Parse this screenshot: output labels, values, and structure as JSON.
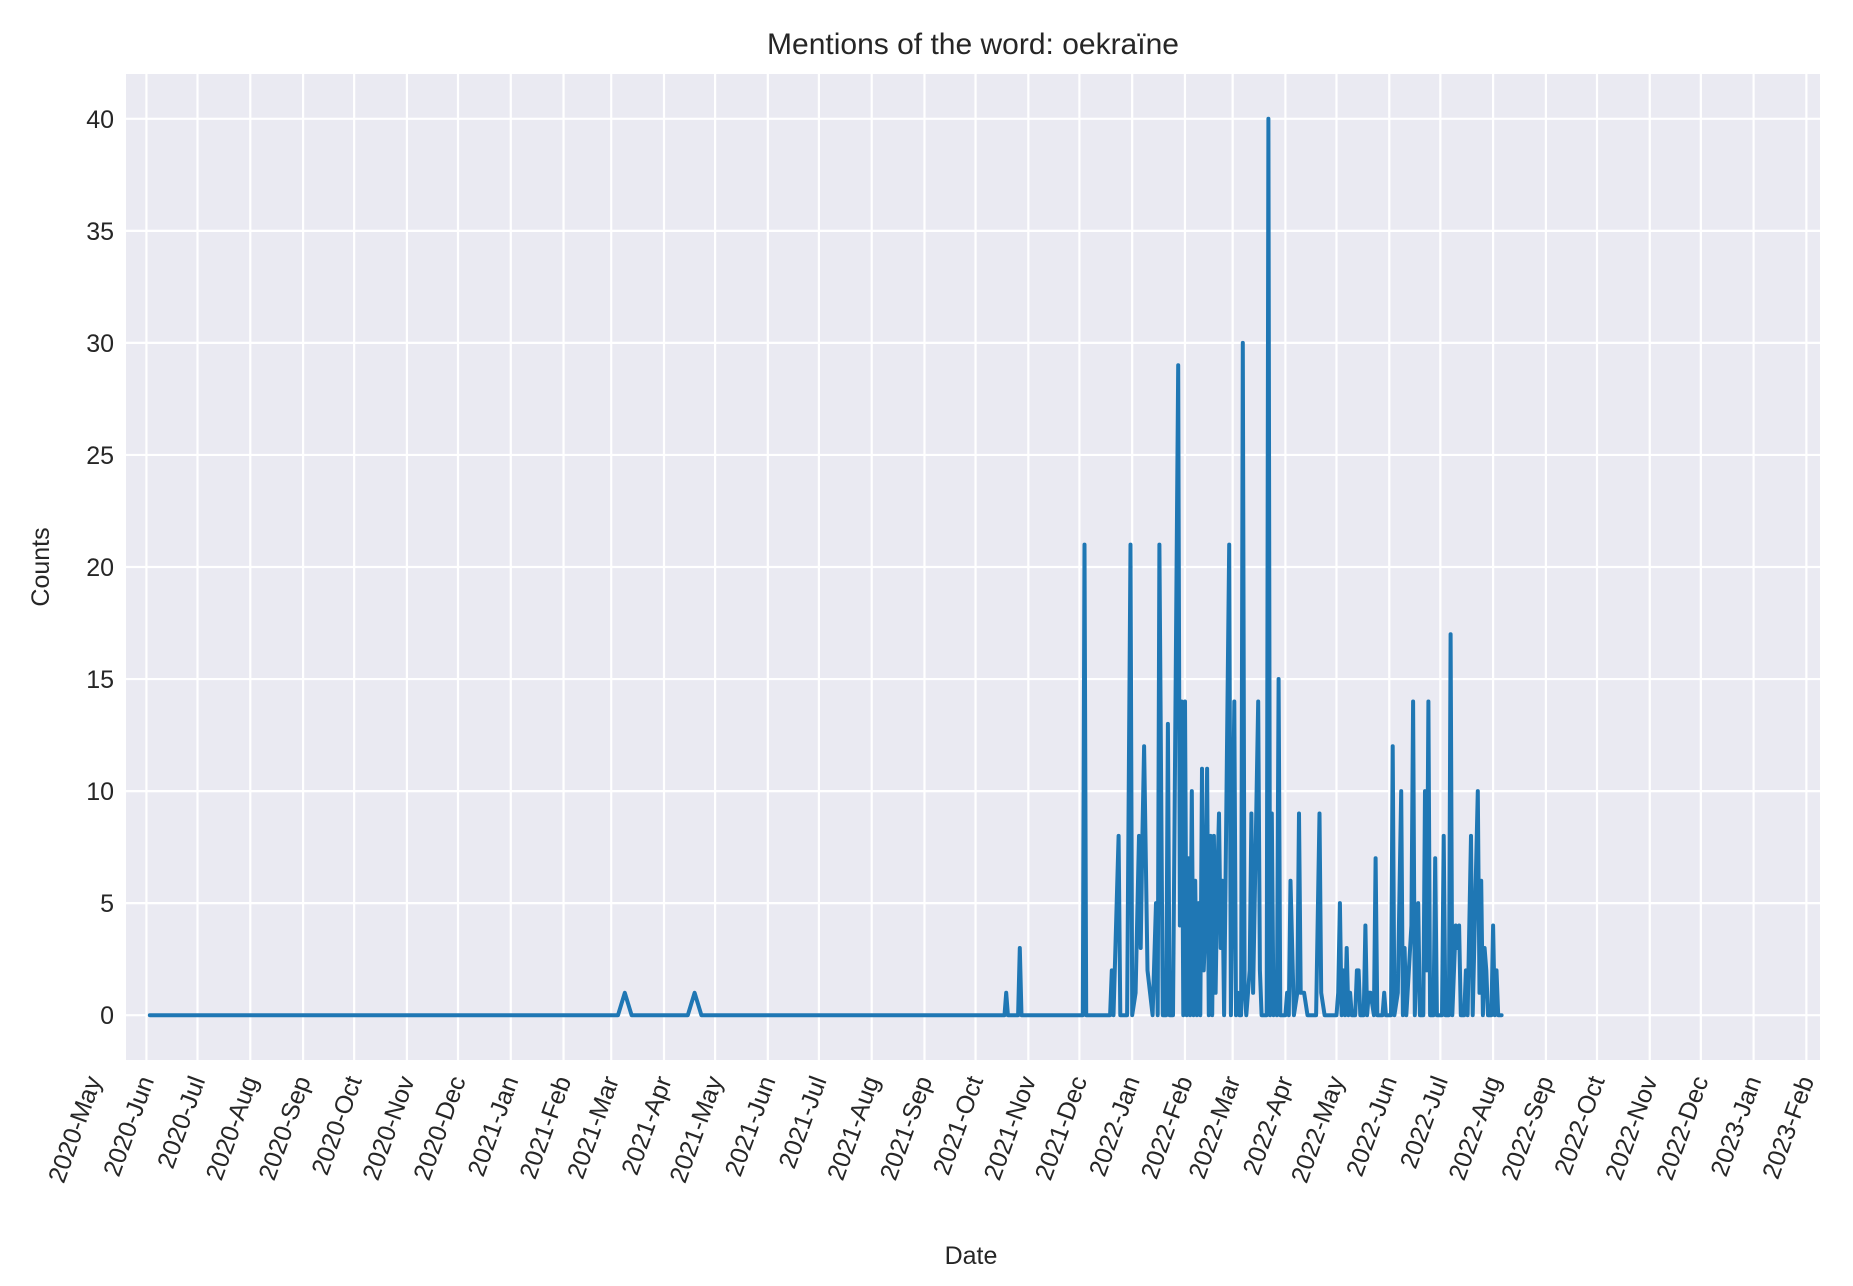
{
  "chart_data": {
    "type": "line",
    "title": "Mentions of the word: oekraïne",
    "xlabel": "Date",
    "ylabel": "Counts",
    "ylim": [
      -2,
      42
    ],
    "xlim": [
      "2020-05-20",
      "2023-02-09"
    ],
    "grid": true,
    "legend": "none",
    "colors": {
      "background": "#EAEAF2",
      "grid": "#FFFFFF",
      "line": "#1F77B4",
      "text": "#262626"
    },
    "y_ticks": [
      0,
      5,
      10,
      15,
      20,
      25,
      30,
      35,
      40
    ],
    "x_ticks": [
      {
        "date": "2020-05-01",
        "label": "2020-May"
      },
      {
        "date": "2020-06-01",
        "label": "2020-Jun"
      },
      {
        "date": "2020-07-01",
        "label": "2020-Jul"
      },
      {
        "date": "2020-08-01",
        "label": "2020-Aug"
      },
      {
        "date": "2020-09-01",
        "label": "2020-Sep"
      },
      {
        "date": "2020-10-01",
        "label": "2020-Oct"
      },
      {
        "date": "2020-11-01",
        "label": "2020-Nov"
      },
      {
        "date": "2020-12-01",
        "label": "2020-Dec"
      },
      {
        "date": "2021-01-01",
        "label": "2021-Jan"
      },
      {
        "date": "2021-02-01",
        "label": "2021-Feb"
      },
      {
        "date": "2021-03-01",
        "label": "2021-Mar"
      },
      {
        "date": "2021-04-01",
        "label": "2021-Apr"
      },
      {
        "date": "2021-05-01",
        "label": "2021-May"
      },
      {
        "date": "2021-06-01",
        "label": "2021-Jun"
      },
      {
        "date": "2021-07-01",
        "label": "2021-Jul"
      },
      {
        "date": "2021-08-01",
        "label": "2021-Aug"
      },
      {
        "date": "2021-09-01",
        "label": "2021-Sep"
      },
      {
        "date": "2021-10-01",
        "label": "2021-Oct"
      },
      {
        "date": "2021-11-01",
        "label": "2021-Nov"
      },
      {
        "date": "2021-12-01",
        "label": "2021-Dec"
      },
      {
        "date": "2022-01-01",
        "label": "2022-Jan"
      },
      {
        "date": "2022-02-01",
        "label": "2022-Feb"
      },
      {
        "date": "2022-03-01",
        "label": "2022-Mar"
      },
      {
        "date": "2022-04-01",
        "label": "2022-Apr"
      },
      {
        "date": "2022-05-01",
        "label": "2022-May"
      },
      {
        "date": "2022-06-01",
        "label": "2022-Jun"
      },
      {
        "date": "2022-07-01",
        "label": "2022-Jul"
      },
      {
        "date": "2022-08-01",
        "label": "2022-Aug"
      },
      {
        "date": "2022-09-01",
        "label": "2022-Sep"
      },
      {
        "date": "2022-10-01",
        "label": "2022-Oct"
      },
      {
        "date": "2022-11-01",
        "label": "2022-Nov"
      },
      {
        "date": "2022-12-01",
        "label": "2022-Dec"
      },
      {
        "date": "2023-01-01",
        "label": "2023-Jan"
      },
      {
        "date": "2023-02-01",
        "label": "2023-Feb"
      }
    ],
    "series": [
      {
        "points": [
          [
            "2020-06-03",
            0
          ],
          [
            "2021-03-05",
            0
          ],
          [
            "2021-03-09",
            1
          ],
          [
            "2021-03-13",
            0
          ],
          [
            "2021-04-15",
            0
          ],
          [
            "2021-04-19",
            1
          ],
          [
            "2021-04-23",
            0
          ],
          [
            "2021-10-18",
            0
          ],
          [
            "2021-10-19",
            1
          ],
          [
            "2021-10-20",
            0
          ],
          [
            "2021-10-26",
            0
          ],
          [
            "2021-10-27",
            3
          ],
          [
            "2021-10-28",
            0
          ],
          [
            "2021-12-03",
            0
          ],
          [
            "2021-12-04",
            21
          ],
          [
            "2021-12-05",
            0
          ],
          [
            "2021-12-19",
            0
          ],
          [
            "2021-12-20",
            2
          ],
          [
            "2021-12-21",
            0
          ],
          [
            "2021-12-24",
            8
          ],
          [
            "2021-12-25",
            0
          ],
          [
            "2021-12-27",
            0
          ],
          [
            "2021-12-29",
            0
          ],
          [
            "2021-12-31",
            21
          ],
          [
            "2022-01-01",
            0
          ],
          [
            "2022-01-03",
            1
          ],
          [
            "2022-01-05",
            8
          ],
          [
            "2022-01-06",
            3
          ],
          [
            "2022-01-07",
            8
          ],
          [
            "2022-01-08",
            12
          ],
          [
            "2022-01-10",
            2
          ],
          [
            "2022-01-13",
            0
          ],
          [
            "2022-01-15",
            5
          ],
          [
            "2022-01-16",
            0
          ],
          [
            "2022-01-17",
            21
          ],
          [
            "2022-01-19",
            0
          ],
          [
            "2022-01-21",
            0
          ],
          [
            "2022-01-22",
            13
          ],
          [
            "2022-01-23",
            0
          ],
          [
            "2022-01-25",
            0
          ],
          [
            "2022-01-28",
            29
          ],
          [
            "2022-01-29",
            4
          ],
          [
            "2022-01-30",
            14
          ],
          [
            "2022-01-31",
            0
          ],
          [
            "2022-02-01",
            14
          ],
          [
            "2022-02-02",
            0
          ],
          [
            "2022-02-03",
            7
          ],
          [
            "2022-02-04",
            0
          ],
          [
            "2022-02-05",
            10
          ],
          [
            "2022-02-06",
            0
          ],
          [
            "2022-02-07",
            6
          ],
          [
            "2022-02-08",
            0
          ],
          [
            "2022-02-09",
            5
          ],
          [
            "2022-02-10",
            0
          ],
          [
            "2022-02-11",
            11
          ],
          [
            "2022-02-12",
            2
          ],
          [
            "2022-02-13",
            4
          ],
          [
            "2022-02-14",
            11
          ],
          [
            "2022-02-15",
            0
          ],
          [
            "2022-02-16",
            8
          ],
          [
            "2022-02-17",
            0
          ],
          [
            "2022-02-18",
            8
          ],
          [
            "2022-02-19",
            1
          ],
          [
            "2022-02-20",
            6
          ],
          [
            "2022-02-21",
            9
          ],
          [
            "2022-02-22",
            3
          ],
          [
            "2022-02-23",
            6
          ],
          [
            "2022-02-24",
            0
          ],
          [
            "2022-02-27",
            21
          ],
          [
            "2022-02-28",
            0
          ],
          [
            "2022-03-02",
            14
          ],
          [
            "2022-03-03",
            0
          ],
          [
            "2022-03-04",
            1
          ],
          [
            "2022-03-05",
            0
          ],
          [
            "2022-03-06",
            0
          ],
          [
            "2022-03-07",
            30
          ],
          [
            "2022-03-08",
            1
          ],
          [
            "2022-03-09",
            0
          ],
          [
            "2022-03-11",
            2
          ],
          [
            "2022-03-12",
            9
          ],
          [
            "2022-03-13",
            1
          ],
          [
            "2022-03-16",
            14
          ],
          [
            "2022-03-17",
            2
          ],
          [
            "2022-03-18",
            0
          ],
          [
            "2022-03-21",
            0
          ],
          [
            "2022-03-22",
            40
          ],
          [
            "2022-03-23",
            0
          ],
          [
            "2022-03-24",
            9
          ],
          [
            "2022-03-25",
            0
          ],
          [
            "2022-03-26",
            1
          ],
          [
            "2022-03-27",
            0
          ],
          [
            "2022-03-28",
            15
          ],
          [
            "2022-03-29",
            0
          ],
          [
            "2022-04-01",
            0
          ],
          [
            "2022-04-02",
            1
          ],
          [
            "2022-04-03",
            0
          ],
          [
            "2022-04-04",
            6
          ],
          [
            "2022-04-05",
            3
          ],
          [
            "2022-04-06",
            0
          ],
          [
            "2022-04-08",
            1
          ],
          [
            "2022-04-09",
            9
          ],
          [
            "2022-04-10",
            1
          ],
          [
            "2022-04-12",
            1
          ],
          [
            "2022-04-14",
            0
          ],
          [
            "2022-04-19",
            0
          ],
          [
            "2022-04-21",
            9
          ],
          [
            "2022-04-22",
            1
          ],
          [
            "2022-04-24",
            0
          ],
          [
            "2022-05-01",
            0
          ],
          [
            "2022-05-02",
            1
          ],
          [
            "2022-05-03",
            5
          ],
          [
            "2022-05-04",
            0
          ],
          [
            "2022-05-05",
            2
          ],
          [
            "2022-05-06",
            0
          ],
          [
            "2022-05-07",
            3
          ],
          [
            "2022-05-08",
            0
          ],
          [
            "2022-05-09",
            1
          ],
          [
            "2022-05-10",
            0
          ],
          [
            "2022-05-12",
            0
          ],
          [
            "2022-05-13",
            2
          ],
          [
            "2022-05-14",
            2
          ],
          [
            "2022-05-15",
            0
          ],
          [
            "2022-05-17",
            0
          ],
          [
            "2022-05-18",
            4
          ],
          [
            "2022-05-19",
            0
          ],
          [
            "2022-05-20",
            1
          ],
          [
            "2022-05-21",
            1
          ],
          [
            "2022-05-23",
            0
          ],
          [
            "2022-05-24",
            7
          ],
          [
            "2022-05-25",
            0
          ],
          [
            "2022-05-28",
            0
          ],
          [
            "2022-05-29",
            1
          ],
          [
            "2022-05-30",
            0
          ],
          [
            "2022-06-02",
            0
          ],
          [
            "2022-06-03",
            12
          ],
          [
            "2022-06-04",
            0
          ],
          [
            "2022-06-06",
            1
          ],
          [
            "2022-06-08",
            10
          ],
          [
            "2022-06-09",
            0
          ],
          [
            "2022-06-10",
            3
          ],
          [
            "2022-06-11",
            0
          ],
          [
            "2022-06-14",
            4
          ],
          [
            "2022-06-15",
            14
          ],
          [
            "2022-06-16",
            0
          ],
          [
            "2022-06-18",
            5
          ],
          [
            "2022-06-19",
            0
          ],
          [
            "2022-06-21",
            0
          ],
          [
            "2022-06-22",
            10
          ],
          [
            "2022-06-23",
            2
          ],
          [
            "2022-06-24",
            14
          ],
          [
            "2022-06-25",
            0
          ],
          [
            "2022-06-27",
            0
          ],
          [
            "2022-06-28",
            7
          ],
          [
            "2022-06-29",
            0
          ],
          [
            "2022-07-02",
            0
          ],
          [
            "2022-07-03",
            8
          ],
          [
            "2022-07-04",
            0
          ],
          [
            "2022-07-06",
            0
          ],
          [
            "2022-07-07",
            17
          ],
          [
            "2022-07-08",
            0
          ],
          [
            "2022-07-10",
            4
          ],
          [
            "2022-07-11",
            3
          ],
          [
            "2022-07-12",
            4
          ],
          [
            "2022-07-13",
            0
          ],
          [
            "2022-07-15",
            0
          ],
          [
            "2022-07-16",
            2
          ],
          [
            "2022-07-17",
            0
          ],
          [
            "2022-07-19",
            8
          ],
          [
            "2022-07-20",
            0
          ],
          [
            "2022-07-23",
            10
          ],
          [
            "2022-07-24",
            1
          ],
          [
            "2022-07-25",
            6
          ],
          [
            "2022-07-26",
            0
          ],
          [
            "2022-07-27",
            3
          ],
          [
            "2022-07-28",
            2
          ],
          [
            "2022-07-29",
            0
          ],
          [
            "2022-07-31",
            0
          ],
          [
            "2022-08-01",
            4
          ],
          [
            "2022-08-02",
            0
          ],
          [
            "2022-08-03",
            2
          ],
          [
            "2022-08-04",
            0
          ],
          [
            "2022-08-06",
            0
          ]
        ]
      }
    ]
  }
}
